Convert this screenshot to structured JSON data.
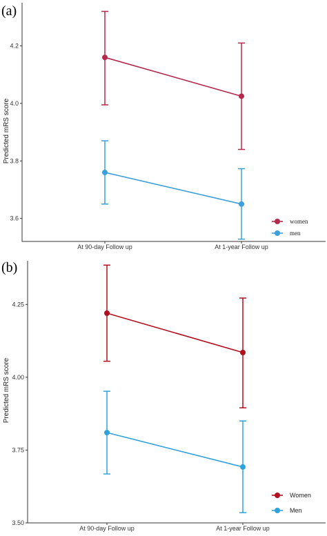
{
  "chart_data": [
    {
      "type": "line",
      "panel_label": "(a)",
      "categories": [
        "At 90-day Follow up",
        "At 1-year Follow up"
      ],
      "ylabel": "Predicted mRS score",
      "ylim": [
        3.52,
        4.35
      ],
      "yticks": [
        3.6,
        3.8,
        4.0,
        4.2
      ],
      "ytick_labels": [
        "3.6",
        "3.8",
        "4.0",
        "4.2"
      ],
      "grid": false,
      "legend_position": "bottom-right",
      "series": [
        {
          "name": "women",
          "color": "#b5284a",
          "values": [
            4.16,
            4.025
          ],
          "lower": [
            3.995,
            3.84
          ],
          "upper": [
            4.32,
            4.21
          ]
        },
        {
          "name": "men",
          "color": "#3a9fdb",
          "values": [
            3.76,
            3.65
          ],
          "lower": [
            3.65,
            3.528
          ],
          "upper": [
            3.87,
            3.773
          ]
        }
      ]
    },
    {
      "type": "line",
      "panel_label": "(b)",
      "categories": [
        "At 90-day Follow up",
        "At 1-year Follow up"
      ],
      "ylabel": "Predicted mRS score",
      "ylim": [
        3.5,
        4.4
      ],
      "yticks": [
        3.5,
        3.75,
        4.0,
        4.25
      ],
      "ytick_labels": [
        "3.50",
        "3.75",
        "4.00",
        "4.25"
      ],
      "grid": false,
      "legend_position": "bottom-right",
      "series": [
        {
          "name": "Women",
          "color": "#b30f1c",
          "values": [
            4.22,
            4.085
          ],
          "lower": [
            4.055,
            3.895
          ],
          "upper": [
            4.385,
            4.272
          ]
        },
        {
          "name": "Men",
          "color": "#2fa2dc",
          "values": [
            3.81,
            3.692
          ],
          "lower": [
            3.668,
            3.535
          ],
          "upper": [
            3.952,
            3.85
          ]
        }
      ]
    }
  ]
}
